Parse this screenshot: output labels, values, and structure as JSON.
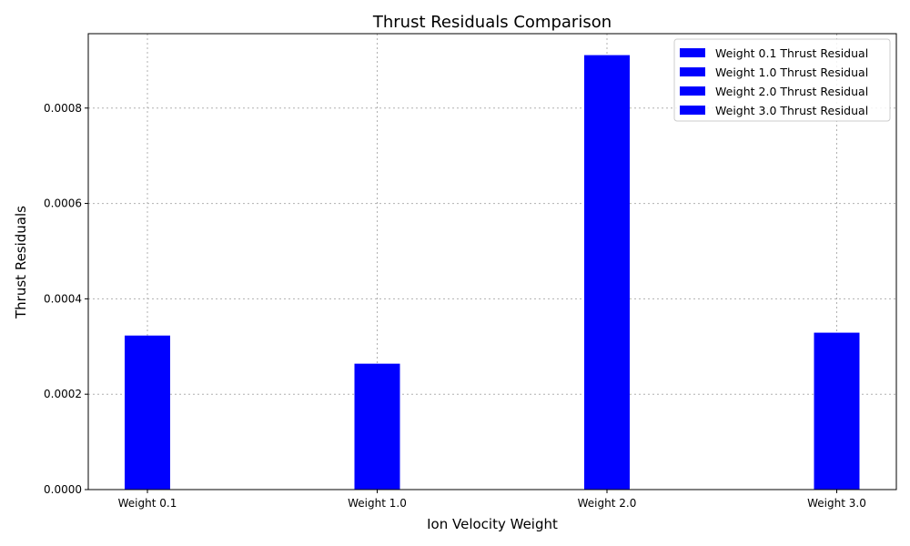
{
  "chart_data": {
    "type": "bar",
    "title": "Thrust Residuals Comparison",
    "xlabel": "Ion Velocity Weight",
    "ylabel": "Thrust Residuals",
    "categories": [
      "Weight 0.1",
      "Weight 1.0",
      "Weight 2.0",
      "Weight 3.0"
    ],
    "series": [
      {
        "name": "Weight 0.1 Thrust Residual",
        "values": [
          0.000323,
          null,
          null,
          null
        ]
      },
      {
        "name": "Weight 1.0 Thrust Residual",
        "values": [
          null,
          0.000264,
          null,
          null
        ]
      },
      {
        "name": "Weight 2.0 Thrust Residual",
        "values": [
          null,
          null,
          0.000911,
          null
        ]
      },
      {
        "name": "Weight 3.0 Thrust Residual",
        "values": [
          null,
          null,
          null,
          0.000329
        ]
      }
    ],
    "values": [
      0.000323,
      0.000264,
      0.000911,
      0.000329
    ],
    "ylim": [
      0,
      0.000956
    ],
    "yticks": [
      "0.0000",
      "0.0002",
      "0.0004",
      "0.0006",
      "0.0008"
    ],
    "ytick_values": [
      0,
      0.0002,
      0.0004,
      0.0006,
      0.0008
    ],
    "bar_color": "#0000ff",
    "grid": true,
    "legend_position": "top-right"
  }
}
